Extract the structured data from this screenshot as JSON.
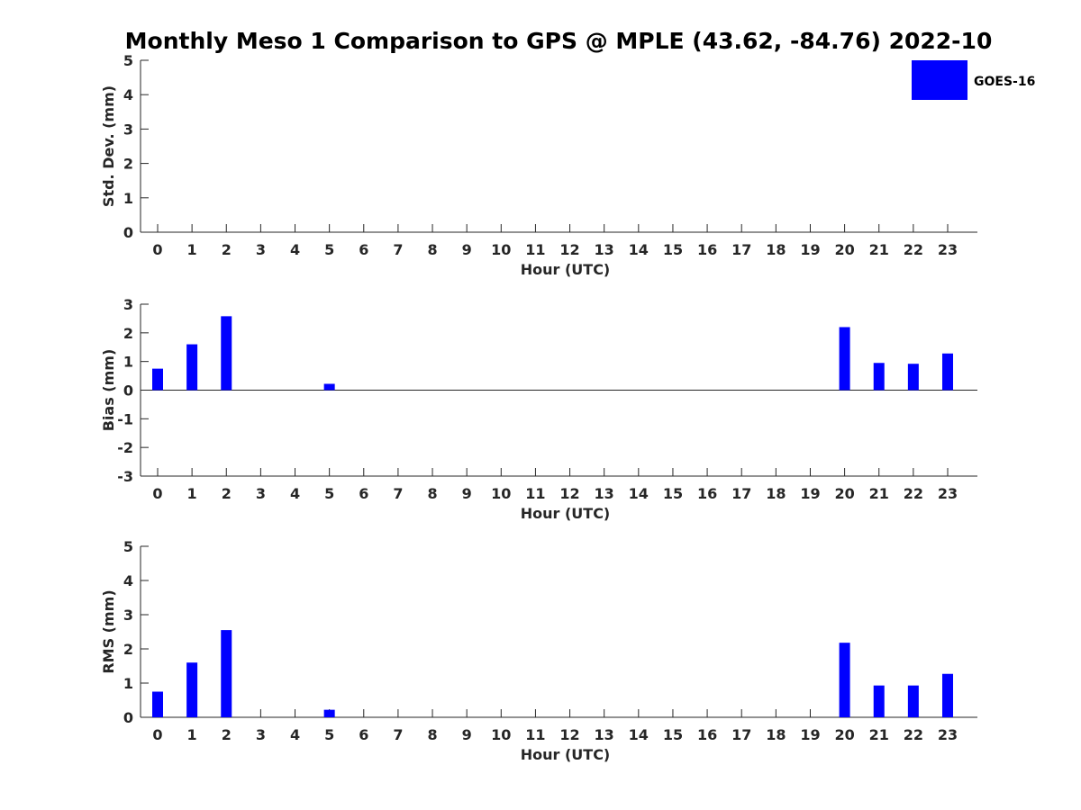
{
  "title": "Monthly Meso 1 Comparison to GPS @ MPLE (43.62, -84.76) 2022-10",
  "legend": {
    "label": "GOES-16",
    "color": "#0000ff",
    "placement": "top-right"
  },
  "chart_data": [
    {
      "type": "bar",
      "name": "std-dev",
      "ylabel": "Std. Dev. (mm)",
      "xlabel": "Hour (UTC)",
      "ylim": [
        0,
        5
      ],
      "yticks": [
        0,
        1,
        2,
        3,
        4,
        5
      ],
      "categories": [
        "0",
        "1",
        "2",
        "3",
        "4",
        "5",
        "6",
        "7",
        "8",
        "9",
        "10",
        "11",
        "12",
        "13",
        "14",
        "15",
        "16",
        "17",
        "18",
        "19",
        "20",
        "21",
        "22",
        "23"
      ],
      "series": [
        {
          "name": "GOES-16",
          "values": [
            null,
            null,
            null,
            null,
            null,
            null,
            null,
            null,
            null,
            null,
            null,
            null,
            null,
            null,
            null,
            null,
            null,
            null,
            null,
            null,
            null,
            null,
            null,
            null
          ]
        }
      ]
    },
    {
      "type": "bar",
      "name": "bias",
      "ylabel": "Bias (mm)",
      "xlabel": "Hour (UTC)",
      "ylim": [
        -3,
        3
      ],
      "yticks": [
        -3,
        -2,
        -1,
        0,
        1,
        2,
        3
      ],
      "categories": [
        "0",
        "1",
        "2",
        "3",
        "4",
        "5",
        "6",
        "7",
        "8",
        "9",
        "10",
        "11",
        "12",
        "13",
        "14",
        "15",
        "16",
        "17",
        "18",
        "19",
        "20",
        "21",
        "22",
        "23"
      ],
      "series": [
        {
          "name": "GOES-16",
          "values": [
            0.75,
            1.6,
            2.58,
            null,
            null,
            0.22,
            null,
            null,
            null,
            null,
            null,
            null,
            null,
            null,
            null,
            null,
            null,
            null,
            null,
            null,
            2.2,
            0.95,
            0.92,
            1.28
          ]
        }
      ]
    },
    {
      "type": "bar",
      "name": "rms",
      "ylabel": "RMS (mm)",
      "xlabel": "Hour (UTC)",
      "ylim": [
        0,
        5
      ],
      "yticks": [
        0,
        1,
        2,
        3,
        4,
        5
      ],
      "categories": [
        "0",
        "1",
        "2",
        "3",
        "4",
        "5",
        "6",
        "7",
        "8",
        "9",
        "10",
        "11",
        "12",
        "13",
        "14",
        "15",
        "16",
        "17",
        "18",
        "19",
        "20",
        "21",
        "22",
        "23"
      ],
      "series": [
        {
          "name": "GOES-16",
          "values": [
            0.75,
            1.6,
            2.55,
            null,
            null,
            0.22,
            null,
            null,
            null,
            null,
            null,
            null,
            null,
            null,
            null,
            null,
            null,
            null,
            null,
            null,
            2.18,
            0.93,
            0.93,
            1.27
          ]
        }
      ]
    }
  ]
}
